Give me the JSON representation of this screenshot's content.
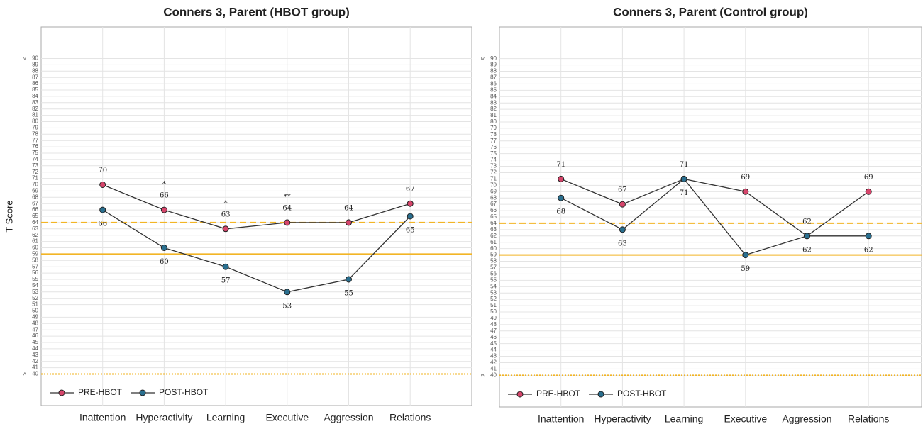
{
  "chart_data": [
    {
      "type": "line",
      "title": "Conners 3, Parent (HBOT group)",
      "y_label": "T Score",
      "categories": [
        "Inattention",
        "Hyperactivity",
        "Learning",
        "Executive",
        "Aggression",
        "Relations"
      ],
      "series": [
        {
          "name": "PRE-HBOT",
          "color": "#d6456b",
          "values": [
            70,
            66,
            63,
            64,
            64,
            67
          ],
          "label_position": "above"
        },
        {
          "name": "POST-HBOT",
          "color": "#2a6f8f",
          "values": [
            66,
            60,
            57,
            53,
            55,
            65
          ],
          "label_position": "below"
        }
      ],
      "line_color": "#333333",
      "annotations": [
        {
          "x": "Hyperactivity",
          "text": "*"
        },
        {
          "x": "Learning",
          "text": "*"
        },
        {
          "x": "Executive",
          "text": "**"
        }
      ],
      "reference_lines": [
        {
          "value": 64,
          "style": "dashed",
          "color": "#f2b526"
        },
        {
          "value": 59,
          "style": "solid",
          "color": "#f2b526"
        },
        {
          "value": 40,
          "style": "dotted",
          "color": "#f2b526"
        }
      ],
      "ylim": [
        35,
        95
      ],
      "yticks": [
        40,
        41,
        42,
        43,
        44,
        45,
        46,
        47,
        48,
        49,
        50,
        51,
        52,
        53,
        54,
        55,
        56,
        57,
        58,
        59,
        60,
        61,
        62,
        63,
        64,
        65,
        66,
        67,
        68,
        69,
        70,
        71,
        72,
        73,
        74,
        75,
        76,
        77,
        78,
        79,
        80,
        81,
        82,
        83,
        84,
        85,
        86,
        87,
        88,
        89,
        90
      ],
      "y_min_symbol": "≤",
      "y_max_symbol": "≥",
      "grid": true,
      "legend": "lower left"
    },
    {
      "type": "line",
      "title": "Conners 3, Parent (Control group)",
      "categories": [
        "Inattention",
        "Hyperactivity",
        "Learning",
        "Executive",
        "Aggression",
        "Relations"
      ],
      "series": [
        {
          "name": "PRE-HBOT",
          "color": "#d6456b",
          "values": [
            71,
            67,
            71,
            69,
            62,
            69
          ],
          "label_position": "above"
        },
        {
          "name": "POST-HBOT",
          "color": "#2a6f8f",
          "values": [
            68,
            63,
            71,
            59,
            62,
            62
          ],
          "label_position": "below"
        }
      ],
      "line_color": "#333333",
      "reference_lines": [
        {
          "value": 64,
          "style": "dashed",
          "color": "#f2b526"
        },
        {
          "value": 59,
          "style": "solid",
          "color": "#f2b526"
        },
        {
          "value": 40,
          "style": "dotted",
          "color": "#f2b526"
        }
      ],
      "ylim": [
        35,
        95
      ],
      "yticks": [
        40,
        41,
        42,
        43,
        44,
        45,
        46,
        47,
        48,
        49,
        50,
        51,
        52,
        53,
        54,
        55,
        56,
        57,
        58,
        59,
        60,
        61,
        62,
        63,
        64,
        65,
        66,
        67,
        68,
        69,
        70,
        71,
        72,
        73,
        74,
        75,
        76,
        77,
        78,
        79,
        80,
        81,
        82,
        83,
        84,
        85,
        86,
        87,
        88,
        89,
        90
      ],
      "y_min_symbol": "≤",
      "y_max_symbol": "≥",
      "grid": true,
      "legend": "lower left"
    }
  ]
}
